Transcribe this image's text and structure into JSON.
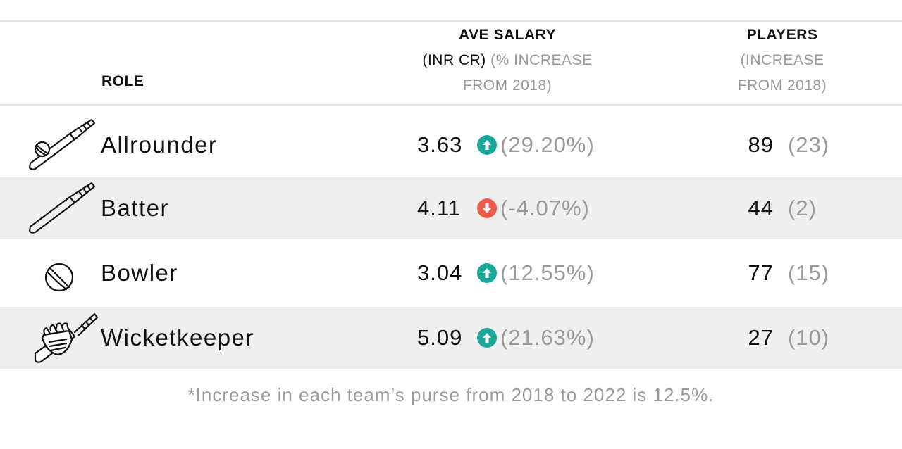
{
  "header": {
    "role": "ROLE",
    "salary_title": "AVE SALARY",
    "salary_unit": "(INR CR)",
    "salary_note_1": "(% INCREASE",
    "salary_note_2": "FROM 2018)",
    "players_title": "PLAYERS",
    "players_note_1": "(INCREASE",
    "players_note_2": "FROM 2018)"
  },
  "rows": [
    {
      "role": "Allrounder",
      "icon": "bat-and-ball-icon",
      "salary": "3.63",
      "direction": "up",
      "change": "(29.20%)",
      "players": "89",
      "increase": "(23)"
    },
    {
      "role": "Batter",
      "icon": "cricket-bat-icon",
      "salary": "4.11",
      "direction": "down",
      "change": "(-4.07%)",
      "players": "44",
      "increase": "(2)"
    },
    {
      "role": "Bowler",
      "icon": "cricket-ball-icon",
      "salary": "3.04",
      "direction": "up",
      "change": "(12.55%)",
      "players": "77",
      "increase": "(15)"
    },
    {
      "role": "Wicketkeeper",
      "icon": "keeper-gloves-icon",
      "salary": "5.09",
      "direction": "up",
      "change": "(21.63%)",
      "players": "27",
      "increase": "(10)"
    }
  ],
  "colors": {
    "up": "#1aa89b",
    "down": "#ee5a4a",
    "shade": "#efefef",
    "muted": "#9a9a9a"
  },
  "footnote": "*Increase in each team’s purse from 2018 to 2022 is 12.5%.",
  "chart_data": {
    "type": "table",
    "columns": [
      "ROLE",
      "AVE SALARY (INR CR)",
      "% INCREASE FROM 2018",
      "PLAYERS",
      "INCREASE FROM 2018"
    ],
    "rows": [
      [
        "Allrounder",
        3.63,
        29.2,
        89,
        23
      ],
      [
        "Batter",
        4.11,
        -4.07,
        44,
        2
      ],
      [
        "Bowler",
        3.04,
        12.55,
        77,
        15
      ],
      [
        "Wicketkeeper",
        5.09,
        21.63,
        27,
        10
      ]
    ]
  }
}
